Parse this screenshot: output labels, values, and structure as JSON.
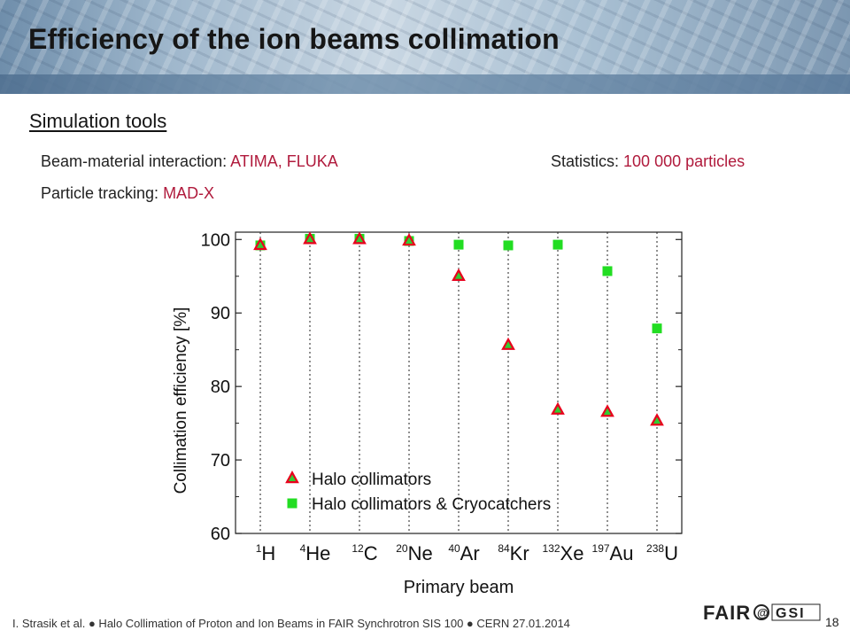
{
  "title": "Efficiency of the ion beams collimation",
  "section_heading": "Simulation tools",
  "info": {
    "beam_material_label": "Beam-material interaction: ",
    "beam_material_value": "ATIMA, FLUKA",
    "statistics_label": "Statistics: ",
    "statistics_value": "100 000 particles",
    "tracking_label": "Particle tracking: ",
    "tracking_value": "MAD-X"
  },
  "chart_data": {
    "type": "scatter",
    "xlabel": "Primary beam",
    "ylabel": "Collimation efficiency [%]",
    "ylim": [
      60,
      101
    ],
    "yticks": [
      60,
      70,
      80,
      90,
      100
    ],
    "categories": [
      {
        "mass": "1",
        "symbol": "H"
      },
      {
        "mass": "4",
        "symbol": "He"
      },
      {
        "mass": "12",
        "symbol": "C"
      },
      {
        "mass": "20",
        "symbol": "Ne"
      },
      {
        "mass": "40",
        "symbol": "Ar"
      },
      {
        "mass": "84",
        "symbol": "Kr"
      },
      {
        "mass": "132",
        "symbol": "Xe"
      },
      {
        "mass": "197",
        "symbol": "Au"
      },
      {
        "mass": "238",
        "symbol": "U"
      }
    ],
    "series": [
      {
        "name": "Halo collimators",
        "marker": "triangle",
        "color": "#e8001c",
        "fill": "#33cc33",
        "values": [
          99.2,
          100.0,
          100.0,
          99.8,
          95.0,
          85.6,
          76.8,
          76.5,
          75.3
        ]
      },
      {
        "name": "Halo collimators & Cryocatchers",
        "marker": "square",
        "color": "#22dd22",
        "values": [
          99.2,
          100.1,
          100.1,
          99.8,
          99.3,
          99.2,
          99.3,
          95.7,
          87.9
        ]
      }
    ],
    "legend_position": "bottom-left",
    "grid": "vertical dotted lines at each category"
  },
  "footer": {
    "text": "I. Strasik et al.  ●  Halo Collimation of Proton and Ion Beams in FAIR Synchrotron SIS 100  ●  CERN 27.01.2014",
    "page": "18",
    "logo_text": "FAIR@GSI"
  }
}
